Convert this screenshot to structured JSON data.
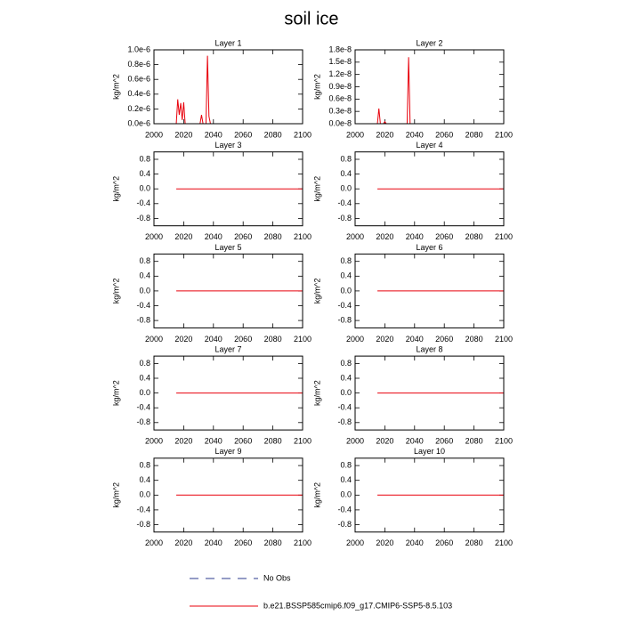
{
  "title": "soil ice",
  "legend": [
    {
      "name": "No Obs",
      "color": "#2b3a8c",
      "dash": true
    },
    {
      "name": "b.e21.BSSP585cmip6.f09_g17.CMIP6-SSP5-8.5.103",
      "color": "#e8000b",
      "dash": false
    }
  ],
  "chart_data": [
    {
      "type": "line",
      "title": "Layer 1",
      "y_label": "kg/m^2",
      "x": [
        2015,
        2016,
        2017,
        2018,
        2019,
        2020,
        2021,
        2031,
        2032,
        2033,
        2035,
        2036,
        2037,
        2038,
        2100
      ],
      "series": [
        {
          "color": "#e8000b",
          "values": [
            0,
            3.3e-07,
            1.2e-07,
            2.8e-07,
            5e-08,
            2.9e-07,
            0,
            0,
            1.2e-07,
            0,
            0,
            9.2e-07,
            1e-07,
            0,
            0
          ]
        }
      ],
      "xlim": [
        2000,
        2100
      ],
      "xticks": [
        2000,
        2020,
        2040,
        2060,
        2080,
        2100
      ],
      "ylim": [
        0,
        1e-06
      ],
      "yticks": [
        {
          "value": 0,
          "label": "0.0e-6"
        },
        {
          "value": 2e-07,
          "label": "0.2e-6"
        },
        {
          "value": 4e-07,
          "label": "0.4e-6"
        },
        {
          "value": 6e-07,
          "label": "0.6e-6"
        },
        {
          "value": 8e-07,
          "label": "0.8e-6"
        },
        {
          "value": 1e-06,
          "label": "1.0e-6"
        }
      ]
    },
    {
      "type": "line",
      "title": "Layer 2",
      "y_label": "kg/m^2",
      "x": [
        2015,
        2016,
        2017,
        2019,
        2020,
        2021,
        2035,
        2036,
        2037,
        2100
      ],
      "series": [
        {
          "color": "#e8000b",
          "values": [
            0,
            3.7e-09,
            0,
            0,
            5e-10,
            0,
            0,
            1.62e-08,
            0,
            0
          ]
        }
      ],
      "xlim": [
        2000,
        2100
      ],
      "xticks": [
        2000,
        2020,
        2040,
        2060,
        2080,
        2100
      ],
      "ylim": [
        0,
        1.8e-08
      ],
      "yticks": [
        {
          "value": 0,
          "label": "0.0e-8"
        },
        {
          "value": 3e-09,
          "label": "0.3e-8"
        },
        {
          "value": 6e-09,
          "label": "0.6e-8"
        },
        {
          "value": 9e-09,
          "label": "0.9e-8"
        },
        {
          "value": 1.2e-08,
          "label": "1.2e-8"
        },
        {
          "value": 1.5e-08,
          "label": "1.5e-8"
        },
        {
          "value": 1.8e-08,
          "label": "1.8e-8"
        }
      ]
    },
    {
      "type": "line",
      "title": "Layer 3",
      "y_label": "kg/m^2",
      "x": [
        2015,
        2100
      ],
      "series": [
        {
          "color": "#e8000b",
          "values": [
            0,
            0
          ]
        }
      ],
      "xlim": [
        2000,
        2100
      ],
      "xticks": [
        2000,
        2020,
        2040,
        2060,
        2080,
        2100
      ],
      "ylim": [
        -1,
        1
      ],
      "yticks": [
        -0.8,
        -0.4,
        {
          "value": 0,
          "label": "0.0"
        },
        0.4,
        0.8
      ]
    },
    {
      "type": "line",
      "title": "Layer 4",
      "y_label": "kg/m^2",
      "x": [
        2015,
        2100
      ],
      "series": [
        {
          "color": "#e8000b",
          "values": [
            0,
            0
          ]
        }
      ],
      "xlim": [
        2000,
        2100
      ],
      "xticks": [
        2000,
        2020,
        2040,
        2060,
        2080,
        2100
      ],
      "ylim": [
        -1,
        1
      ],
      "yticks": [
        -0.8,
        -0.4,
        {
          "value": 0,
          "label": "0.0"
        },
        0.4,
        0.8
      ]
    },
    {
      "type": "line",
      "title": "Layer 5",
      "y_label": "kg/m^2",
      "x": [
        2015,
        2100
      ],
      "series": [
        {
          "color": "#e8000b",
          "values": [
            0,
            0
          ]
        }
      ],
      "xlim": [
        2000,
        2100
      ],
      "xticks": [
        2000,
        2020,
        2040,
        2060,
        2080,
        2100
      ],
      "ylim": [
        -1,
        1
      ],
      "yticks": [
        -0.8,
        -0.4,
        {
          "value": 0,
          "label": "0.0"
        },
        0.4,
        0.8
      ]
    },
    {
      "type": "line",
      "title": "Layer 6",
      "y_label": "kg/m^2",
      "x": [
        2015,
        2100
      ],
      "series": [
        {
          "color": "#e8000b",
          "values": [
            0,
            0
          ]
        }
      ],
      "xlim": [
        2000,
        2100
      ],
      "xticks": [
        2000,
        2020,
        2040,
        2060,
        2080,
        2100
      ],
      "ylim": [
        -1,
        1
      ],
      "yticks": [
        -0.8,
        -0.4,
        {
          "value": 0,
          "label": "0.0"
        },
        0.4,
        0.8
      ]
    },
    {
      "type": "line",
      "title": "Layer 7",
      "y_label": "kg/m^2",
      "x": [
        2015,
        2100
      ],
      "series": [
        {
          "color": "#e8000b",
          "values": [
            0,
            0
          ]
        }
      ],
      "xlim": [
        2000,
        2100
      ],
      "xticks": [
        2000,
        2020,
        2040,
        2060,
        2080,
        2100
      ],
      "ylim": [
        -1,
        1
      ],
      "yticks": [
        -0.8,
        -0.4,
        {
          "value": 0,
          "label": "0.0"
        },
        0.4,
        0.8
      ]
    },
    {
      "type": "line",
      "title": "Layer 8",
      "y_label": "kg/m^2",
      "x": [
        2015,
        2100
      ],
      "series": [
        {
          "color": "#e8000b",
          "values": [
            0,
            0
          ]
        }
      ],
      "xlim": [
        2000,
        2100
      ],
      "xticks": [
        2000,
        2020,
        2040,
        2060,
        2080,
        2100
      ],
      "ylim": [
        -1,
        1
      ],
      "yticks": [
        -0.8,
        -0.4,
        {
          "value": 0,
          "label": "0.0"
        },
        0.4,
        0.8
      ]
    },
    {
      "type": "line",
      "title": "Layer 9",
      "y_label": "kg/m^2",
      "x": [
        2015,
        2100
      ],
      "series": [
        {
          "color": "#e8000b",
          "values": [
            0,
            0
          ]
        }
      ],
      "xlim": [
        2000,
        2100
      ],
      "xticks": [
        2000,
        2020,
        2040,
        2060,
        2080,
        2100
      ],
      "ylim": [
        -1,
        1
      ],
      "yticks": [
        -0.8,
        -0.4,
        {
          "value": 0,
          "label": "0.0"
        },
        0.4,
        0.8
      ]
    },
    {
      "type": "line",
      "title": "Layer 10",
      "y_label": "kg/m^2",
      "x": [
        2015,
        2100
      ],
      "series": [
        {
          "color": "#e8000b",
          "values": [
            0,
            0
          ]
        }
      ],
      "xlim": [
        2000,
        2100
      ],
      "xticks": [
        2000,
        2020,
        2040,
        2060,
        2080,
        2100
      ],
      "ylim": [
        -1,
        1
      ],
      "yticks": [
        -0.8,
        -0.4,
        {
          "value": 0,
          "label": "0.0"
        },
        0.4,
        0.8
      ]
    }
  ]
}
